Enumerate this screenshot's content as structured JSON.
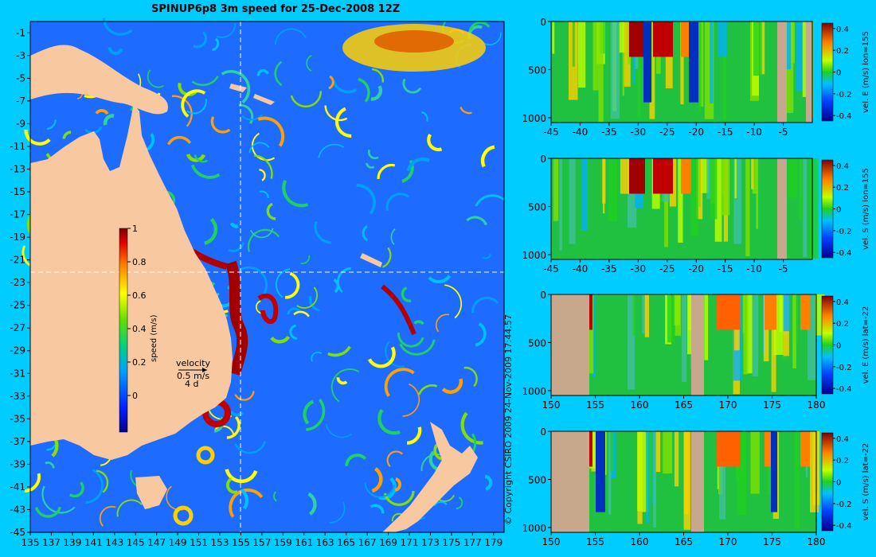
{
  "title": "SPINUP6p8 3m speed for 25-Dec-2008 12Z",
  "copyright": "© Copyright CSIRO 2009   24-Nov-2009 17:44:57",
  "colors": {
    "land": "#f8c8a0",
    "section_land": "#c8a88c",
    "background": "#00ccff"
  },
  "map": {
    "lon_ticks": [
      135,
      137,
      139,
      141,
      143,
      145,
      147,
      149,
      151,
      153,
      155,
      157,
      159,
      161,
      163,
      165,
      167,
      169,
      171,
      173,
      175,
      177,
      179
    ],
    "lat_ticks": [
      -1,
      -3,
      -5,
      -7,
      -9,
      -11,
      -13,
      -15,
      -17,
      -19,
      -21,
      -23,
      -25,
      -27,
      -29,
      -31,
      -33,
      -35,
      -37,
      -39,
      -41,
      -43,
      -45
    ],
    "lon_range": [
      135,
      180
    ],
    "lat_range": [
      -45,
      0
    ],
    "crosshair_lon": 155,
    "crosshair_lat": -22
  },
  "colorbar": {
    "label": "speed (m/s)",
    "ticks": [
      "1",
      "0.8",
      "0.6",
      "0.4",
      "0.2",
      "0"
    ]
  },
  "velocity_key": {
    "label": "velocity",
    "speed": "0.5 m/s",
    "time": "4 d"
  },
  "chart_data": [
    {
      "type": "heatmap",
      "title": "SPINUP6p8 3m speed for 25-Dec-2008 12Z",
      "x": [
        135,
        180
      ],
      "y": [
        -45,
        0
      ],
      "colorbar_label": "speed (m/s)",
      "clim": [
        0,
        1
      ]
    },
    {
      "type": "heatmap",
      "label": "vel. E (m/s) lon=155",
      "x_ticks": [
        "-45",
        "-40",
        "-35",
        "-30",
        "-25",
        "-20",
        "-15",
        "-10",
        "-5"
      ],
      "y_ticks": [
        "0",
        "500",
        "1000"
      ],
      "xlim": [
        -45,
        0
      ],
      "ylim": [
        1050,
        0
      ],
      "cb_ticks": [
        "0.4",
        "0.2",
        "0",
        "-0.2",
        "-0.4"
      ],
      "clim": [
        -0.45,
        0.45
      ]
    },
    {
      "type": "heatmap",
      "label": "vel. S (m/s) lon=155",
      "x_ticks": [
        "-45",
        "-40",
        "-35",
        "-30",
        "-25",
        "-20",
        "-15",
        "-10",
        "-5"
      ],
      "y_ticks": [
        "0",
        "500",
        "1000"
      ],
      "xlim": [
        -45,
        0
      ],
      "ylim": [
        1050,
        0
      ],
      "cb_ticks": [
        "0.4",
        "0.2",
        "0",
        "-0.2",
        "-0.4"
      ],
      "clim": [
        -0.45,
        0.45
      ]
    },
    {
      "type": "heatmap",
      "label": "vel. E (m/s) lat=-22",
      "x_ticks": [
        "150",
        "155",
        "160",
        "165",
        "170",
        "175",
        "180"
      ],
      "y_ticks": [
        "0",
        "500",
        "1000"
      ],
      "xlim": [
        150,
        180
      ],
      "ylim": [
        1050,
        0
      ],
      "cb_ticks": [
        "0.4",
        "0.2",
        "0",
        "-0.2",
        "-0.4"
      ],
      "clim": [
        -0.45,
        0.45
      ]
    },
    {
      "type": "heatmap",
      "label": "vel. S (m/s) lat=-22",
      "x_ticks": [
        "150",
        "155",
        "160",
        "165",
        "170",
        "175",
        "180"
      ],
      "y_ticks": [
        "0",
        "500",
        "1000"
      ],
      "xlim": [
        150,
        180
      ],
      "ylim": [
        1050,
        0
      ],
      "cb_ticks": [
        "0.4",
        "0.2",
        "0",
        "-0.2",
        "-0.4"
      ],
      "clim": [
        -0.45,
        0.45
      ]
    }
  ]
}
